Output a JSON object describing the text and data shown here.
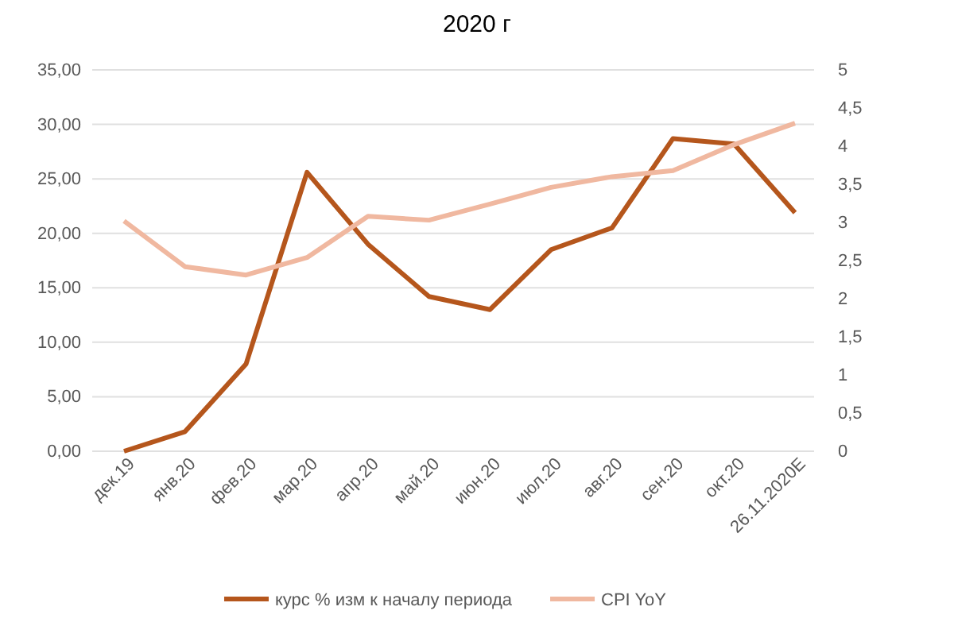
{
  "chart_data": {
    "type": "line",
    "title": "2020 г",
    "categories": [
      "дек.19",
      "янв.20",
      "фев.20",
      "мар.20",
      "апр.20",
      "май.20",
      "июн.20",
      "июл.20",
      "авг.20",
      "сен.20",
      "окт.20",
      "26.11.2020E"
    ],
    "series": [
      {
        "name": "курс % изм к началу периода",
        "color": "#b5561c",
        "values": [
          0,
          1.8,
          8,
          25.6,
          19,
          14.2,
          13,
          18.5,
          20.5,
          28.7,
          28.2,
          21.9
        ]
      },
      {
        "name": "CPI YoY",
        "color": "#f0b8a0",
        "axis": "y2",
        "values": [
          3.02,
          2.42,
          2.31,
          2.54,
          3.08,
          3.03,
          3.24,
          3.46,
          3.6,
          3.68,
          4.02,
          4.3
        ]
      }
    ],
    "ylim": [
      0,
      35
    ],
    "yticks": [
      {
        "value": 0,
        "label": "0,00"
      },
      {
        "value": 5,
        "label": "5,00"
      },
      {
        "value": 10,
        "label": "10,00"
      },
      {
        "value": 15,
        "label": "15,00"
      },
      {
        "value": 20,
        "label": "20,00"
      },
      {
        "value": 25,
        "label": "25,00"
      },
      {
        "value": 30,
        "label": "30,00"
      },
      {
        "value": 35,
        "label": "35,00"
      }
    ],
    "y2lim": [
      0,
      5
    ],
    "y2ticks": [
      0,
      {
        "value": 0.5,
        "label": "0,5"
      },
      1,
      {
        "value": 1.5,
        "label": "1,5"
      },
      2,
      {
        "value": 2.5,
        "label": "2,5"
      },
      3,
      {
        "value": 3.5,
        "label": "3,5"
      },
      4,
      {
        "value": 4.5,
        "label": "4,5"
      },
      5
    ],
    "grid": "y",
    "legend": "bottom",
    "marker": "none",
    "line_style": "solid"
  }
}
